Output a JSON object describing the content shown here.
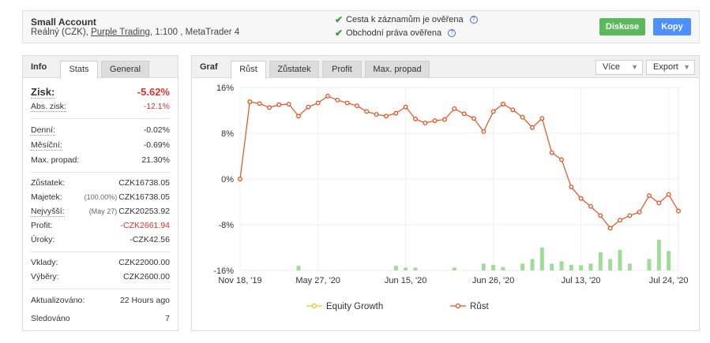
{
  "account": {
    "title": "Small Account",
    "type": "Reálný (CZK),",
    "broker": "Purple Trading",
    "rest": ", 1:100 , MetaTrader 4"
  },
  "verification": [
    {
      "text": "Cesta k záznamům je ověřena"
    },
    {
      "text": "Obchodní práva ověřena"
    }
  ],
  "buttons": {
    "discuss": "Diskuse",
    "copy": "Kopy"
  },
  "left_tabs": {
    "title": "Info",
    "stats": "Stats",
    "general": "General"
  },
  "stats": {
    "gain_label": "Zisk:",
    "gain_value": "-5.62%",
    "abs_gain_label": "Abs. zisk:",
    "abs_gain_value": "-12.1%",
    "daily_label": "Denní:",
    "daily_value": "-0.02%",
    "monthly_label": "Měsíční:",
    "monthly_value": "-0.69%",
    "drawdown_label": "Max. propad:",
    "drawdown_value": "21.30%",
    "balance_label": "Zůstatek:",
    "balance_value": "CZK16738.05",
    "equity_label": "Majetek:",
    "equity_pct": "(100.00%)",
    "equity_value": "CZK16738.05",
    "highest_label": "Nejvyšší:",
    "highest_date": "(May 27)",
    "highest_value": "CZK20253.92",
    "profit_label": "Profit:",
    "profit_value": "-CZK2661.94",
    "interest_label": "Úroky:",
    "interest_value": "-CZK42.56",
    "deposits_label": "Vklady:",
    "deposits_value": "CZK22000.00",
    "withdrawals_label": "Výběry:",
    "withdrawals_value": "CZK2600.00",
    "updated_label": "Aktualizováno:",
    "updated_value": "22 Hours ago",
    "watched_label": "Sledováno",
    "watched_value": "7"
  },
  "chart_tabs": {
    "title": "Graf",
    "tabs": [
      "Růst",
      "Zůstatek",
      "Profit",
      "Max. propad"
    ],
    "more": "Více",
    "export": "Export"
  },
  "colors": {
    "growth": "#e8501f",
    "equity": "#f5c518",
    "bars": "#9fdc98",
    "green_btn": "#5cb85c",
    "blue_btn": "#4d90fe"
  },
  "chart_data": {
    "type": "line",
    "ylim": [
      -16,
      16
    ],
    "yticks": [
      "16%",
      "8%",
      "0%",
      "-8%",
      "-16%"
    ],
    "xticks": [
      "Nov 18, '19",
      "May 27, '20",
      "Jun 15, '20",
      "Jun 26, '20",
      "Jul 13, '20",
      "Jul 24, '20"
    ],
    "legend": [
      "Equity Growth",
      "Růst"
    ],
    "series": [
      {
        "name": "Růst",
        "values": [
          0,
          13.5,
          13.2,
          12.5,
          13.0,
          13.1,
          11.0,
          12.6,
          13.3,
          14.5,
          13.8,
          13.3,
          12.8,
          11.8,
          11.3,
          11.0,
          11.5,
          12.6,
          10.5,
          9.8,
          10.2,
          10.4,
          12.3,
          11.4,
          10.6,
          8.3,
          11.8,
          13.1,
          12.1,
          10.8,
          9.0,
          10.6,
          4.6,
          3.4,
          -1.4,
          -3.4,
          -4.8,
          -6.4,
          -8.6,
          -7.2,
          -6.4,
          -5.8,
          -2.9,
          -4.2,
          -2.7,
          -5.6
        ]
      },
      {
        "name": "Equity Growth",
        "values": [
          0,
          13.5,
          13.2,
          12.5,
          13.0,
          13.1,
          11.0,
          12.6,
          13.3,
          14.5,
          13.8,
          13.3,
          12.8,
          11.8,
          11.3,
          11.0,
          11.5,
          12.6,
          10.5,
          9.8,
          10.2,
          10.4,
          12.3,
          11.4,
          10.6,
          8.3,
          11.8,
          13.1,
          12.1,
          10.8,
          9.0,
          10.6,
          4.6,
          3.4,
          -1.4,
          -3.4,
          -4.8,
          -6.4,
          -8.6,
          -7.2,
          -6.4,
          -5.8,
          -2.9,
          -4.2,
          -2.7,
          -5.6
        ]
      }
    ],
    "bars": [
      {
        "i": 6,
        "v": 0.8
      },
      {
        "i": 16,
        "v": 0.8
      },
      {
        "i": 17,
        "v": 0.5
      },
      {
        "i": 18,
        "v": 0.5
      },
      {
        "i": 22,
        "v": 0.5
      },
      {
        "i": 25,
        "v": 1.2
      },
      {
        "i": 26,
        "v": 1.0
      },
      {
        "i": 27,
        "v": 0.6
      },
      {
        "i": 29,
        "v": 1.2
      },
      {
        "i": 30,
        "v": 2.0
      },
      {
        "i": 31,
        "v": 4.0
      },
      {
        "i": 32,
        "v": 1.2
      },
      {
        "i": 33,
        "v": 1.6
      },
      {
        "i": 34,
        "v": 1.0
      },
      {
        "i": 35,
        "v": 0.9
      },
      {
        "i": 36,
        "v": 1.2
      },
      {
        "i": 37,
        "v": 3.2
      },
      {
        "i": 38,
        "v": 2.0
      },
      {
        "i": 39,
        "v": 3.6
      },
      {
        "i": 40,
        "v": 1.2
      },
      {
        "i": 42,
        "v": 2.0
      },
      {
        "i": 43,
        "v": 5.4
      },
      {
        "i": 44,
        "v": 3.4
      }
    ]
  }
}
